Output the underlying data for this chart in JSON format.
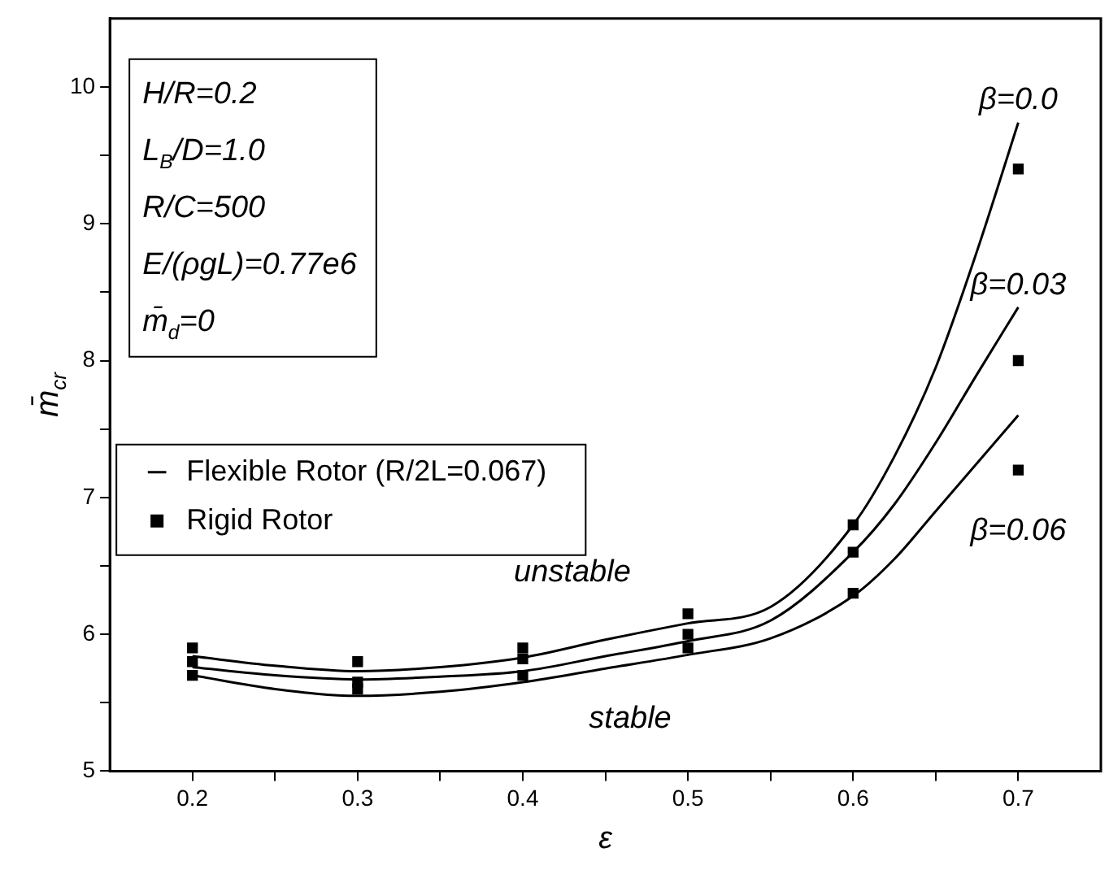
{
  "chart_data": {
    "type": "line",
    "xlabel": "ε",
    "ylabel": "m̄$_{cr}$",
    "x": [
      0.2,
      0.25,
      0.3,
      0.35,
      0.4,
      0.45,
      0.5,
      0.55,
      0.6,
      0.625,
      0.65,
      0.675,
      0.7
    ],
    "series": [
      {
        "name": "Flexible Rotor (R/2L=0.067)",
        "color": "#000000",
        "values": [
          5.84,
          5.77,
          5.73,
          5.76,
          5.83,
          5.96,
          6.08,
          6.2,
          6.8,
          7.3,
          7.95,
          8.8,
          9.74
        ]
      },
      {
        "color": "#000000",
        "values": [
          5.76,
          5.7,
          5.67,
          5.69,
          5.73,
          5.84,
          5.95,
          6.1,
          6.6,
          6.95,
          7.4,
          7.9,
          8.39
        ]
      },
      {
        "color": "#000000",
        "values": [
          5.7,
          5.6,
          5.55,
          5.58,
          5.65,
          5.75,
          5.85,
          5.97,
          6.28,
          6.55,
          6.9,
          7.25,
          7.6
        ]
      },
      {
        "name": "Rigid Rotor",
        "type": "scatter",
        "marker": "square",
        "color": "#000000",
        "x": [
          0.2,
          0.2,
          0.2,
          0.3,
          0.3,
          0.3,
          0.4,
          0.4,
          0.4,
          0.5,
          0.5,
          0.5,
          0.6,
          0.6,
          0.6,
          0.7,
          0.7,
          0.7
        ],
        "values": [
          5.9,
          5.8,
          5.7,
          5.8,
          5.65,
          5.6,
          5.9,
          5.82,
          5.7,
          6.15,
          6.0,
          5.9,
          6.8,
          6.6,
          6.3,
          9.4,
          8.0,
          7.2
        ]
      }
    ],
    "xlim": [
      0.15,
      0.75
    ],
    "xticks": [
      0.2,
      {
        "value": 0.25,
        "label": null
      },
      0.3,
      {
        "value": 0.35,
        "label": null
      },
      0.4,
      {
        "value": 0.45,
        "label": null
      },
      0.5,
      {
        "value": 0.55,
        "label": null
      },
      0.6,
      {
        "value": 0.65,
        "label": null
      },
      0.7
    ],
    "ylim": [
      5,
      10.5
    ],
    "yticks": [
      5,
      {
        "value": 5.5,
        "label": null
      },
      6,
      {
        "value": 6.5,
        "label": null
      },
      7,
      {
        "value": 7.5,
        "label": null
      },
      8,
      {
        "value": 8.5,
        "label": null
      },
      9,
      {
        "value": 9.5,
        "label": null
      },
      10
    ],
    "grid": false,
    "legend": "left",
    "marker": "none",
    "line_style": "solid",
    "annotations": [
      "H/R=0.2",
      "L$_{B}$/D=1.0",
      "R/C=500",
      "E/(ρgL)=0.77e6",
      "m̄$_{d}$=0",
      "β=0.0",
      "β=0.03",
      "β=0.06",
      "unstable",
      "stable"
    ]
  }
}
